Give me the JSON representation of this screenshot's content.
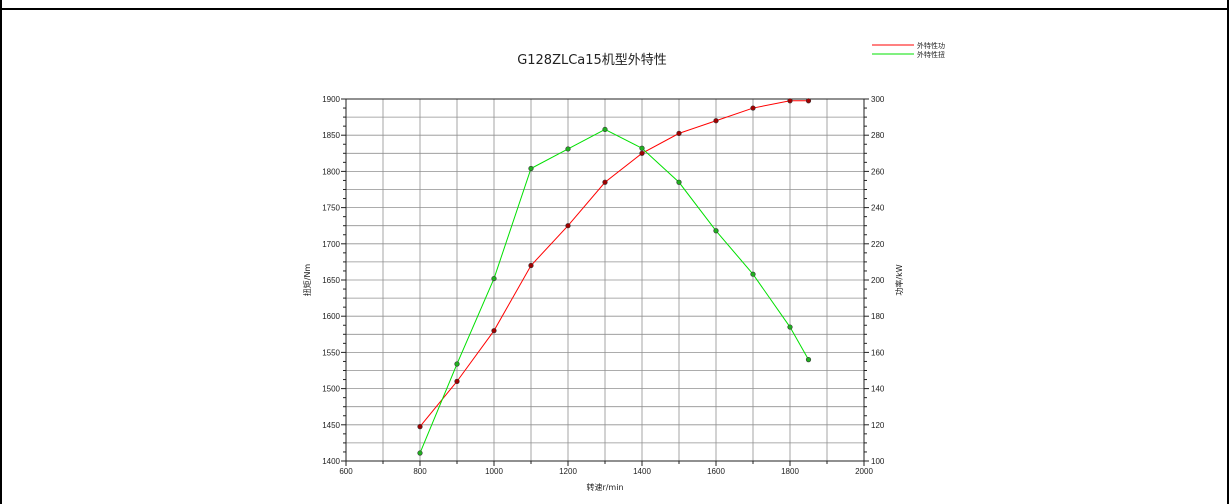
{
  "chart_data": {
    "type": "line",
    "title": "G128ZLCa15机型外特性",
    "xlabel": "转速r/min",
    "ylabel_left": "扭矩/Nm",
    "ylabel_right": "功率/kW",
    "xlim": [
      600,
      2000
    ],
    "ylim_left": [
      1400,
      1900
    ],
    "ylim_right": [
      100,
      300
    ],
    "x_ticks": [
      600,
      800,
      1000,
      1200,
      1400,
      1600,
      1800,
      2000
    ],
    "y_left_ticks": [
      1400,
      1450,
      1500,
      1550,
      1600,
      1650,
      1700,
      1750,
      1800,
      1850,
      1900
    ],
    "y_right_ticks": [
      100,
      120,
      140,
      160,
      180,
      200,
      220,
      240,
      260,
      280,
      300
    ],
    "grid": true,
    "legend_position": "top-right",
    "series": [
      {
        "name": "外特性功",
        "color": "#ff0000",
        "marker_color": "#a00000",
        "axis": "right",
        "x": [
          800,
          900,
          1000,
          1100,
          1200,
          1300,
          1400,
          1500,
          1600,
          1700,
          1800,
          1850
        ],
        "values": [
          119,
          144,
          172,
          208,
          230,
          254,
          270,
          281,
          288,
          295,
          299,
          299
        ]
      },
      {
        "name": "外特性扭",
        "color": "#00e000",
        "marker_color": "#20b020",
        "axis": "left",
        "x": [
          800,
          900,
          1000,
          1100,
          1200,
          1300,
          1400,
          1500,
          1600,
          1700,
          1800,
          1850
        ],
        "values": [
          1411,
          1534,
          1652,
          1804,
          1831,
          1858,
          1832,
          1785,
          1718,
          1658,
          1585,
          1540
        ]
      }
    ]
  }
}
